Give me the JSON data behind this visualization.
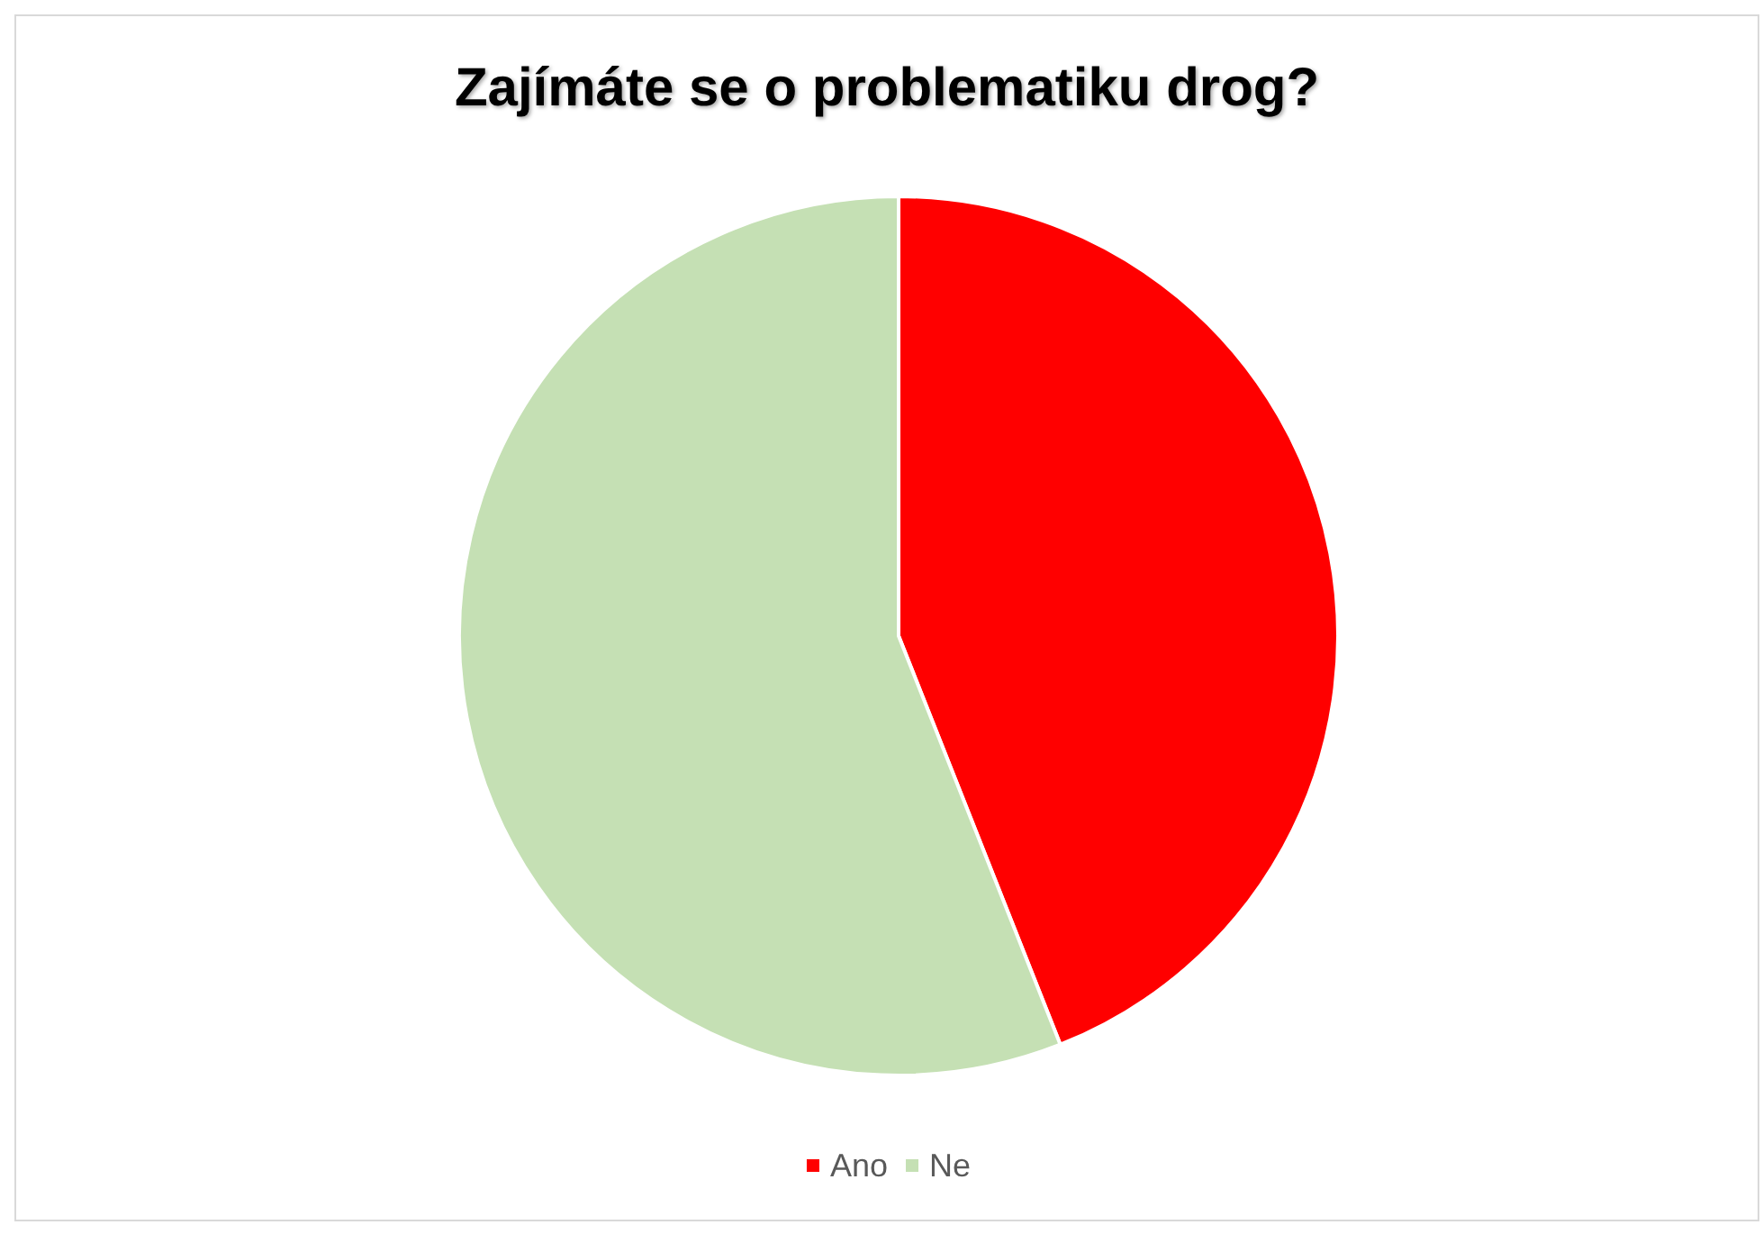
{
  "chart_data": {
    "type": "pie",
    "title": "Zajímáte se o problematiku drog?",
    "categories": [
      "Ano",
      "Ne"
    ],
    "values": [
      44,
      56
    ],
    "colors": [
      "#ff0000",
      "#c5e0b4"
    ],
    "legend": "bottom"
  }
}
